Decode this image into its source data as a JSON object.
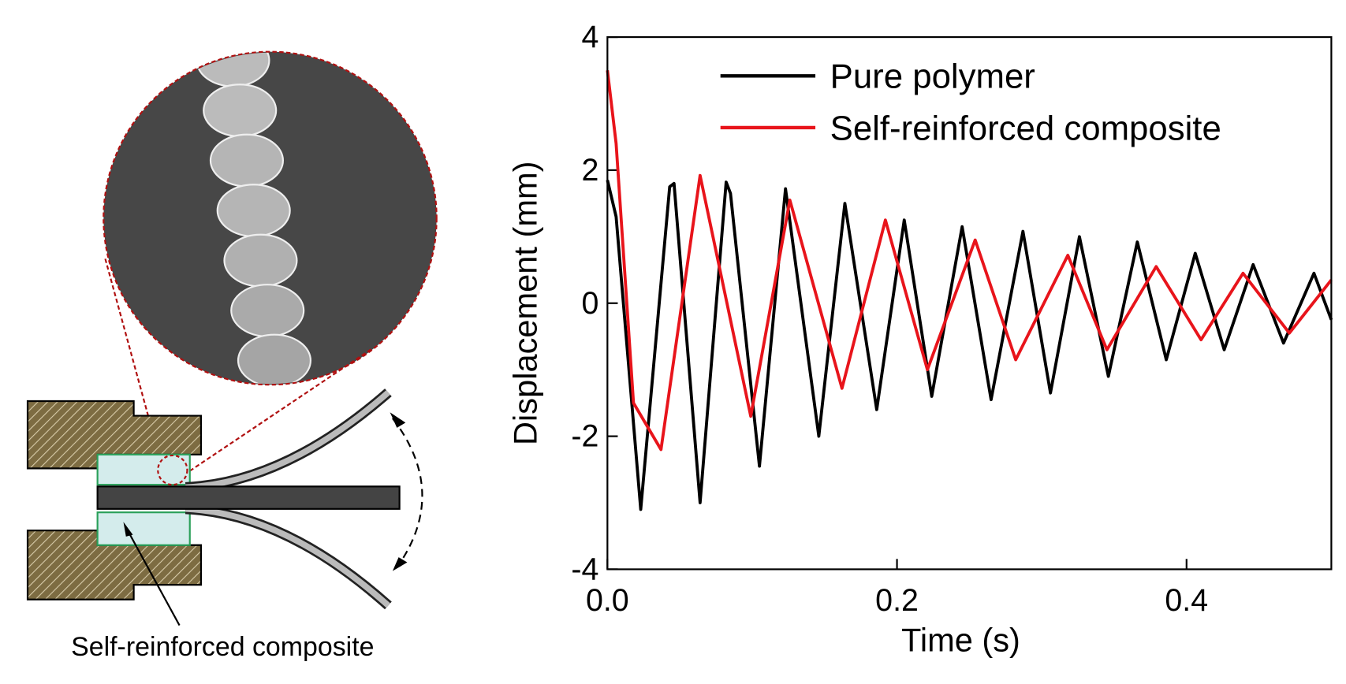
{
  "chart_data": {
    "type": "line",
    "xlabel": "Time (s)",
    "ylabel": "Displacement (mm)",
    "xlim": [
      0,
      0.5
    ],
    "xticks": [
      {
        "value": 0,
        "label": "0.0"
      },
      0.2,
      0.4
    ],
    "ylim": [
      -4,
      4
    ],
    "yticks": [
      -4,
      -2,
      0,
      2,
      4
    ],
    "legend": "upper right",
    "series": [
      {
        "name": "Pure polymer",
        "color": "#000000",
        "x": [
          0,
          0.006,
          0.023,
          0.043,
          0.046,
          0.064,
          0.082,
          0.085,
          0.105,
          0.123,
          0.146,
          0.164,
          0.186,
          0.205,
          0.224,
          0.245,
          0.265,
          0.287,
          0.306,
          0.326,
          0.346,
          0.366,
          0.386,
          0.406,
          0.426,
          0.446,
          0.467,
          0.488,
          0.5
        ],
        "values": [
          1.85,
          1.3,
          -3.1,
          1.75,
          1.8,
          -3.0,
          1.82,
          1.65,
          -2.45,
          1.72,
          -2.0,
          1.5,
          -1.6,
          1.25,
          -1.4,
          1.15,
          -1.45,
          1.08,
          -1.35,
          1.0,
          -1.1,
          0.92,
          -0.85,
          0.75,
          -0.7,
          0.58,
          -0.6,
          0.45,
          -0.25
        ]
      },
      {
        "name": "Self-reinforced composite",
        "color": "#e8141b",
        "x": [
          0,
          0.006,
          0.018,
          0.037,
          0.064,
          0.099,
          0.126,
          0.162,
          0.192,
          0.221,
          0.254,
          0.282,
          0.318,
          0.345,
          0.379,
          0.41,
          0.439,
          0.471,
          0.5
        ],
        "values": [
          3.5,
          2.4,
          -1.5,
          -2.2,
          1.92,
          -1.7,
          1.55,
          -1.28,
          1.25,
          -1.0,
          0.95,
          -0.85,
          0.72,
          -0.7,
          0.55,
          -0.55,
          0.45,
          -0.45,
          0.35
        ]
      }
    ]
  },
  "diagram": {
    "label": "Self-reinforced composite"
  }
}
